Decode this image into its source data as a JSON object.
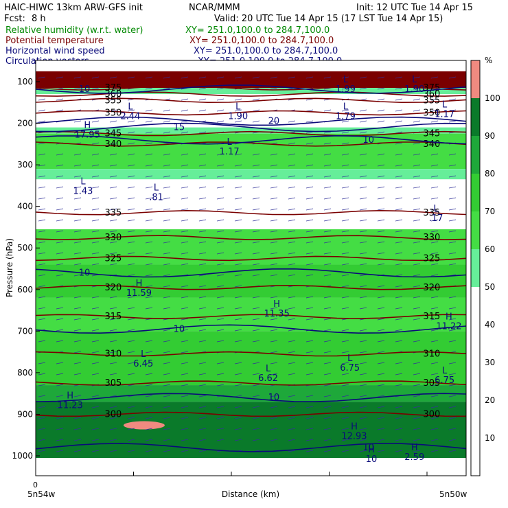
{
  "header": {
    "line1_left": "HAIC-HIWC 13km ARW-GFS init",
    "line1_mid": "NCAR/MMM",
    "line1_right": "Init: 12 UTC Tue 14 Apr 15",
    "fcst_label": "Fcst:",
    "fcst_value": "8 h",
    "valid": "Valid: 20 UTC Tue 14 Apr 15 (17 LST Tue 14 Apr 15)",
    "fields": [
      {
        "name": "Relative humidity (w.r.t. water)",
        "xy": "XY= 251.0,100.0 to 284.7,100.0",
        "color": "#008800"
      },
      {
        "name": "Potential temperature",
        "xy": "XY= 251.0,100.0 to 284.7,100.0",
        "color": "#7a0000"
      },
      {
        "name": "Horizontal wind speed",
        "xy": "XY= 251.0,100.0 to 284.7,100.0",
        "color": "#0a0a7a"
      },
      {
        "name": "Circulation vectors",
        "xy": "XY= 251.0,100.0 to 284.7,100.0",
        "color": "#0a0a7a"
      }
    ]
  },
  "colors": {
    "theta": "#7a0000",
    "wind": "#0a0a7a",
    "vectors": "#333399",
    "labels": "#0a0a7a"
  },
  "chart_data": {
    "type": "heatmap",
    "title": "",
    "xlabel": "Distance (km)",
    "ylabel": "Pressure (hPa)",
    "x_tick_label": "0",
    "x_start_label": "5n54w",
    "x_end_label": "5n50w",
    "yticks": [
      100,
      200,
      300,
      400,
      500,
      600,
      700,
      800,
      900,
      1000
    ],
    "ylim": [
      1050,
      75
    ],
    "colorbar": {
      "unit": "%",
      "tick_labels": [
        "10",
        "20",
        "30",
        "40",
        "50",
        "60",
        "70",
        "80",
        "90",
        "100"
      ],
      "levels": [
        {
          "min": 0,
          "max": 50,
          "color": "#ffffff"
        },
        {
          "min": 50,
          "max": 60,
          "color": "#66ee99"
        },
        {
          "min": 60,
          "max": 70,
          "color": "#44dd44"
        },
        {
          "min": 70,
          "max": 80,
          "color": "#33cc33"
        },
        {
          "min": 80,
          "max": 90,
          "color": "#1ea83a"
        },
        {
          "min": 90,
          "max": 100,
          "color": "#0a7a2a"
        },
        {
          "min": 100,
          "max": 110,
          "color": "#f08a80"
        }
      ]
    },
    "rh_bands": [
      {
        "p_top": 75,
        "p_bottom": 115,
        "level": "100+",
        "color": "#7a0000"
      },
      {
        "p_top": 115,
        "p_bottom": 130,
        "level": "50-60",
        "color": "#66ee99"
      },
      {
        "p_top": 130,
        "p_bottom": 210,
        "level": "<50",
        "color": "#ffffff"
      },
      {
        "p_top": 210,
        "p_bottom": 225,
        "level": "50-60",
        "color": "#66ee99"
      },
      {
        "p_top": 225,
        "p_bottom": 310,
        "level": "60-70",
        "color": "#44dd44"
      },
      {
        "p_top": 310,
        "p_bottom": 335,
        "level": "50-60",
        "color": "#66ee99"
      },
      {
        "p_top": 335,
        "p_bottom": 455,
        "level": "<50",
        "color": "#ffffff"
      },
      {
        "p_top": 455,
        "p_bottom": 540,
        "level": "60-70",
        "color": "#44dd44"
      },
      {
        "p_top": 540,
        "p_bottom": 620,
        "level": "70-80",
        "color": "#33cc33"
      },
      {
        "p_top": 620,
        "p_bottom": 700,
        "level": "60-70",
        "color": "#44dd44"
      },
      {
        "p_top": 700,
        "p_bottom": 830,
        "level": "70-80",
        "color": "#33cc33"
      },
      {
        "p_top": 830,
        "p_bottom": 870,
        "level": "80-90",
        "color": "#1ea83a"
      },
      {
        "p_top": 870,
        "p_bottom": 1005,
        "level": "90-100",
        "color": "#0a7a2a"
      }
    ],
    "rh_max_patch": {
      "x_frac": 0.22,
      "p": 920,
      "level": "100+",
      "color": "#f08a80"
    },
    "theta_contours": [
      {
        "label": "375",
        "p": 115
      },
      {
        "label": "360",
        "p": 130
      },
      {
        "label": "355",
        "p": 145
      },
      {
        "label": "350",
        "p": 175
      },
      {
        "label": "345",
        "p": 225
      },
      {
        "label": "340",
        "p": 250
      },
      {
        "label": "335",
        "p": 415
      },
      {
        "label": "330",
        "p": 475
      },
      {
        "label": "325",
        "p": 525
      },
      {
        "label": "320",
        "p": 595
      },
      {
        "label": "315",
        "p": 665
      },
      {
        "label": "310",
        "p": 755
      },
      {
        "label": "305",
        "p": 825
      },
      {
        "label": "300",
        "p": 900
      }
    ],
    "wind_contours": [
      {
        "label": "10",
        "p": 118
      },
      {
        "label": "15",
        "p": 210
      },
      {
        "label": "20",
        "p": 195
      },
      {
        "label": "10",
        "p": 240
      },
      {
        "label": "10",
        "p": 560
      },
      {
        "label": "10",
        "p": 695
      },
      {
        "label": "10",
        "p": 860
      },
      {
        "label": "10",
        "p": 980
      }
    ],
    "extrema": [
      {
        "kind": "L",
        "value": "2.44",
        "x_frac": 0.22,
        "p": 180
      },
      {
        "kind": "L",
        "value": "1.90",
        "x_frac": 0.47,
        "p": 180
      },
      {
        "kind": "L",
        "value": "1.79",
        "x_frac": 0.72,
        "p": 180
      },
      {
        "kind": "L",
        "value": "1.17",
        "x_frac": 0.95,
        "p": 175
      },
      {
        "kind": "H",
        "value": "17.95",
        "x_frac": 0.12,
        "p": 225
      },
      {
        "kind": "L",
        "value": "1.17",
        "x_frac": 0.45,
        "p": 265
      },
      {
        "kind": "L",
        "value": "1.43",
        "x_frac": 0.11,
        "p": 360
      },
      {
        "kind": "L",
        "value": ".81",
        "x_frac": 0.28,
        "p": 375
      },
      {
        "kind": "L",
        "value": ".17",
        "x_frac": 0.93,
        "p": 425
      },
      {
        "kind": "H",
        "value": "11.59",
        "x_frac": 0.24,
        "p": 605
      },
      {
        "kind": "H",
        "value": "11.35",
        "x_frac": 0.56,
        "p": 655
      },
      {
        "kind": "H",
        "value": "11.22",
        "x_frac": 0.96,
        "p": 685
      },
      {
        "kind": "L",
        "value": "6.45",
        "x_frac": 0.25,
        "p": 775
      },
      {
        "kind": "L",
        "value": "6.62",
        "x_frac": 0.54,
        "p": 810
      },
      {
        "kind": "L",
        "value": "6.75",
        "x_frac": 0.73,
        "p": 785
      },
      {
        "kind": "L",
        "value": "6.75",
        "x_frac": 0.95,
        "p": 815
      },
      {
        "kind": "H",
        "value": "11.23",
        "x_frac": 0.08,
        "p": 875
      },
      {
        "kind": "H",
        "value": "12.93",
        "x_frac": 0.74,
        "p": 950
      },
      {
        "kind": "H",
        "value": "10",
        "x_frac": 0.78,
        "p": 1005
      },
      {
        "kind": "H",
        "value": "2.59",
        "x_frac": 0.88,
        "p": 1000
      },
      {
        "kind": "L",
        "value": "1.99",
        "x_frac": 0.72,
        "p": 115
      },
      {
        "kind": "L",
        "value": "1.90",
        "x_frac": 0.88,
        "p": 115
      }
    ]
  }
}
